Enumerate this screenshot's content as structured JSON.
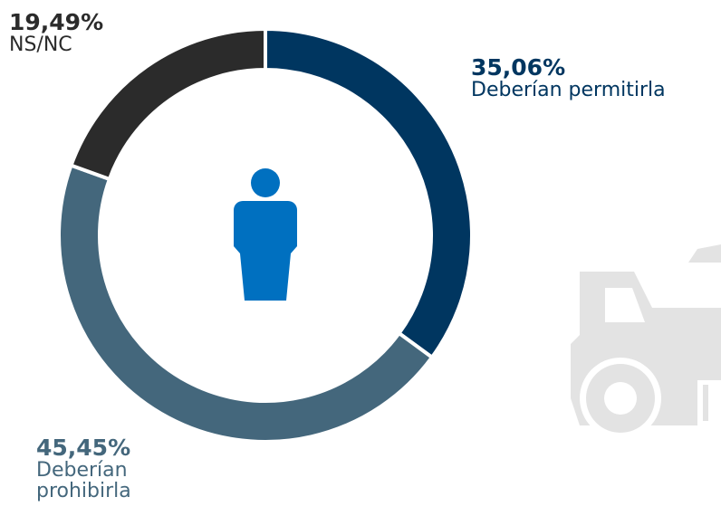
{
  "chart_data": {
    "type": "donut",
    "categories": [
      "Deberían permitirla",
      "Deberían prohibirla",
      "NS/NC"
    ],
    "values": [
      35.06,
      45.45,
      19.49
    ],
    "value_labels": [
      "35,06%",
      "45,45%",
      "19,49%"
    ],
    "colors": [
      "#003660",
      "#44677c",
      "#2b2b2b"
    ]
  }
}
